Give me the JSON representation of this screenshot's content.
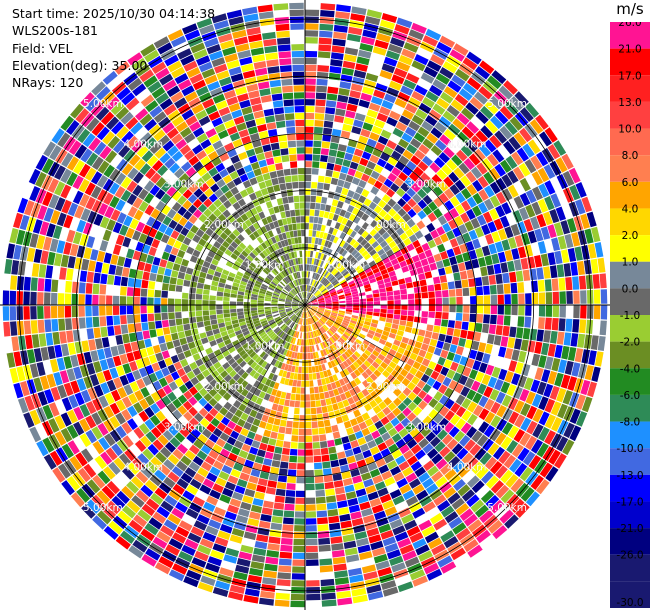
{
  "info": {
    "start_time": "Start time: 2025/10/30 04:14:38",
    "site": "WLS200s-181",
    "field": "Field: VEL",
    "elevation": "Elevation(deg): 35.00",
    "nrays": "NRays: 120"
  },
  "colorbar": {
    "unit": "m/s",
    "bins": [
      {
        "label": "26.0",
        "color": "#ff1493"
      },
      {
        "label": "21.0",
        "color": "#ff0000"
      },
      {
        "label": "17.0",
        "color": "#ff2020"
      },
      {
        "label": "13.0",
        "color": "#ff4040"
      },
      {
        "label": "10.0",
        "color": "#ff6a50"
      },
      {
        "label": "8.0",
        "color": "#ff7f50"
      },
      {
        "label": "6.0",
        "color": "#ffa500"
      },
      {
        "label": "4.0",
        "color": "#ffd700"
      },
      {
        "label": "2.0",
        "color": "#ffff00"
      },
      {
        "label": "1.0",
        "color": "#778899"
      },
      {
        "label": "0.0",
        "color": "#696969"
      },
      {
        "label": "-1.0",
        "color": "#9acd32"
      },
      {
        "label": "-2.0",
        "color": "#6b8e23"
      },
      {
        "label": "-4.0",
        "color": "#228b22"
      },
      {
        "label": "-6.0",
        "color": "#2e8b57"
      },
      {
        "label": "-8.0",
        "color": "#1e90ff"
      },
      {
        "label": "-10.0",
        "color": "#4169e1"
      },
      {
        "label": "-13.0",
        "color": "#0000ff"
      },
      {
        "label": "-17.0",
        "color": "#0000cd"
      },
      {
        "label": "-21.0",
        "color": "#000080"
      },
      {
        "label": "-26.0",
        "color": "#191970"
      }
    ],
    "bottom_label": "-30.0"
  },
  "range_labels": [
    "1.00km",
    "2.00km",
    "3.00km",
    "4.00km",
    "5.00km"
  ],
  "chart_data": {
    "type": "heatmap",
    "projection": "polar PPI",
    "field": "VEL",
    "unit": "m/s",
    "n_rays": 120,
    "elevation_deg": 35.0,
    "range_rings_km": [
      1,
      2,
      3,
      4,
      5
    ],
    "max_range_km": 5.3,
    "colorbar_ticks": [
      26.0,
      21.0,
      17.0,
      13.0,
      10.0,
      8.0,
      6.0,
      4.0,
      2.0,
      1.0,
      0.0,
      -1.0,
      -2.0,
      -4.0,
      -6.0,
      -8.0,
      -10.0,
      -13.0,
      -17.0,
      -21.0,
      -26.0,
      -30.0
    ],
    "near_field_km": 2.3,
    "near_field_pattern": [
      {
        "azimuth_deg": [
          200,
          360
        ],
        "velocity": -1.5,
        "note": "north-west quadrant mostly olive/green"
      },
      {
        "azimuth_deg": [
          0,
          60
        ],
        "velocity": 0.5,
        "note": "north-east grey/green mix"
      },
      {
        "azimuth_deg": [
          60,
          100
        ],
        "velocity": 26.0,
        "note": "east magenta patch"
      },
      {
        "azimuth_deg": [
          100,
          200
        ],
        "velocity": 5.0,
        "note": "south yellow/orange"
      }
    ],
    "far_field": "noisy, mixed colors across all velocity bins"
  }
}
